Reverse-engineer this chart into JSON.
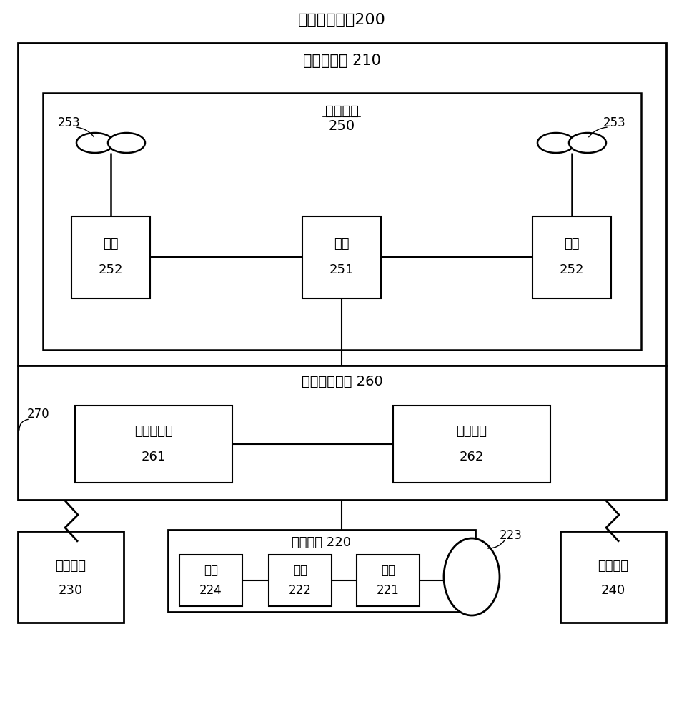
{
  "title": "无人飞行系统200",
  "uav_label": "无人飞行器 210",
  "power_label": "动力系统",
  "power_num": "250",
  "fcs_label": "飞行控制系统 260",
  "gimbal_label": "云台设备 220",
  "label_270": "270",
  "label_223": "223",
  "motor_label": "电机",
  "motor_num_252": "252",
  "esc_label_251": "电调",
  "esc_num_251": "251",
  "prop_label": "253",
  "fc_label": "飞行控制器",
  "fc_num": "261",
  "sensor_label": "传感系统",
  "sensor_num": "262",
  "esc_224_label": "电调",
  "esc_224_num": "224",
  "motor_222_label": "电机",
  "motor_222_num": "222",
  "bracket_label": "支架",
  "bracket_num": "221",
  "display_label": "显示设备",
  "display_num": "230",
  "control_label": "操纵设备",
  "control_num": "240",
  "bg_color": "#ffffff",
  "box_color": "#000000",
  "text_color": "#000000"
}
